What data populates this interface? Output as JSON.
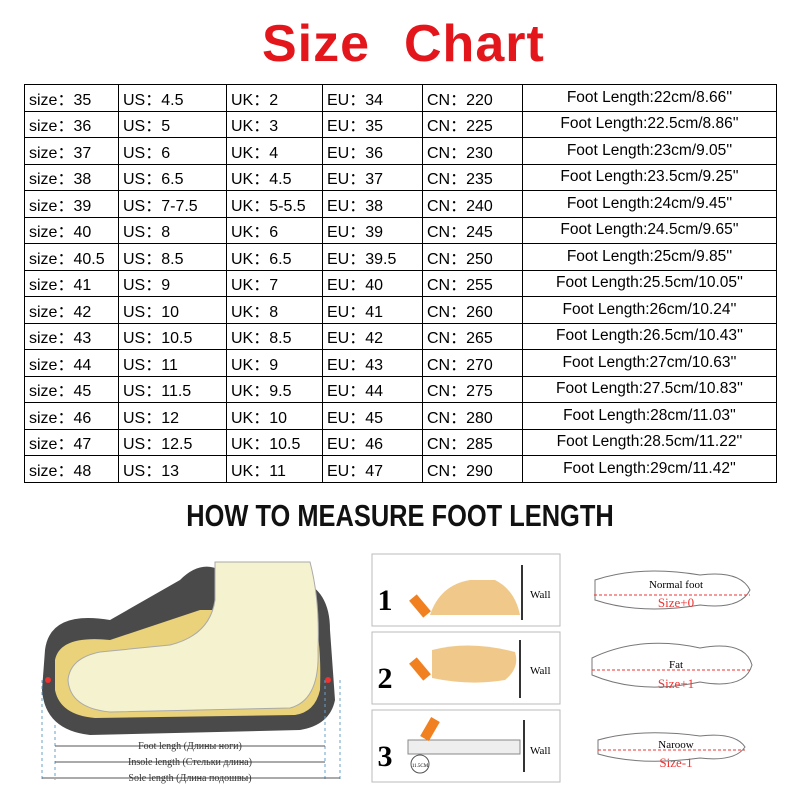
{
  "header": {
    "title_left": "Size",
    "title_right": "Chart"
  },
  "table": {
    "rows": [
      [
        "size：35",
        "US：4.5",
        "UK：2",
        "EU：34",
        "CN：220",
        "Foot Length:22cm/8.66''"
      ],
      [
        "size：36",
        "US：5",
        "UK：3",
        "EU：35",
        "CN：225",
        "Foot Length:22.5cm/8.86''"
      ],
      [
        "size：37",
        "US：6",
        "UK：4",
        "EU：36",
        "CN：230",
        "Foot Length:23cm/9.05''"
      ],
      [
        "size：38",
        "US：6.5",
        "UK：4.5",
        "EU：37",
        "CN：235",
        "Foot Length:23.5cm/9.25''"
      ],
      [
        "size：39",
        "US：7-7.5",
        "UK：5-5.5",
        "EU：38",
        "CN：240",
        "Foot Length:24cm/9.45''"
      ],
      [
        "size：40",
        "US：8",
        "UK：6",
        "EU：39",
        "CN：245",
        "Foot Length:24.5cm/9.65''"
      ],
      [
        "size：40.5",
        "US：8.5",
        "UK：6.5",
        "EU：39.5",
        "CN：250",
        "Foot Length:25cm/9.85''"
      ],
      [
        "size：41",
        "US：9",
        "UK：7",
        "EU：40",
        "CN：255",
        "Foot Length:25.5cm/10.05''"
      ],
      [
        "size：42",
        "US：10",
        "UK：8",
        "EU：41",
        "CN：260",
        "Foot Length:26cm/10.24''"
      ],
      [
        "size：43",
        "US：10.5",
        "UK：8.5",
        "EU：42",
        "CN：265",
        "Foot Length:26.5cm/10.43''"
      ],
      [
        "size：44",
        "US：11",
        "UK：9",
        "EU：43",
        "CN：270",
        "Foot Length:27cm/10.63''"
      ],
      [
        "size：45",
        "US：11.5",
        "UK：9.5",
        "EU：44",
        "CN：275",
        "Foot Length:27.5cm/10.83''"
      ],
      [
        "size：46",
        "US：12",
        "UK：10",
        "EU：45",
        "CN：280",
        "Foot Length:28cm/11.03''"
      ],
      [
        "size：47",
        "US：12.5",
        "UK：10.5",
        "EU：46",
        "CN：285",
        "Foot Length:28.5cm/11.22''"
      ],
      [
        "size：48",
        "US：13",
        "UK：11",
        "EU：47",
        "CN：290",
        "Foot Length:29cm/11.42''"
      ]
    ]
  },
  "measure": {
    "heading": "HOW TO MEASURE FOOT LENGTH",
    "shoe_labels": [
      "Foot lengh (Длины ноги)",
      "Insole length (Стельки длина)",
      "Sole length (Длина подошвы)"
    ],
    "steps": [
      {
        "number": "1",
        "wall": "Wall"
      },
      {
        "number": "2",
        "wall": "Wall"
      },
      {
        "number": "3",
        "wall": "Wall",
        "ruler": "11.5CM"
      }
    ],
    "widths": [
      {
        "label": "Normal foot",
        "size": "Size+0"
      },
      {
        "label": "Fat",
        "size": "Size+1"
      },
      {
        "label": "Naroow",
        "size": "Size-1"
      }
    ]
  }
}
